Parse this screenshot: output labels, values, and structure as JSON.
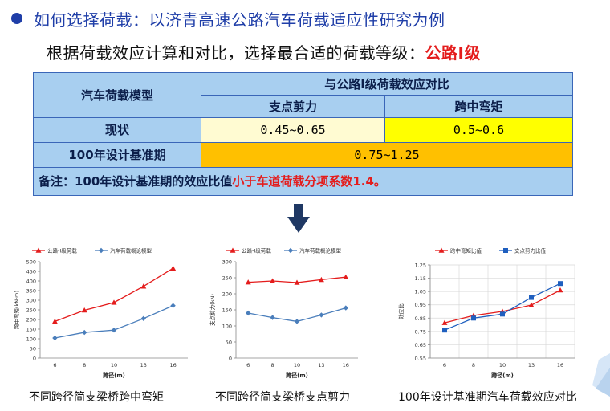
{
  "heading": "如何选择荷载：以济青高速公路汽车荷载适应性研究为例",
  "subheading": {
    "text": "根据荷载效应计算和对比，选择最合适的荷载等级：",
    "highlight": "公路I级"
  },
  "table": {
    "col1_header": "汽车荷载模型",
    "group_header": "与公路I级荷载效应对比",
    "col2_header": "支点剪力",
    "col3_header": "跨中弯矩",
    "row1": {
      "label": "现状",
      "shear": "0.45~0.65",
      "moment": "0.5~0.6"
    },
    "row2": {
      "label": "100年设计基准期",
      "value": "0.75~1.25"
    },
    "note": {
      "text": "备注：100年设计基准期的效应比值",
      "highlight": "小于车道荷载分项系数1.4。"
    }
  },
  "colors": {
    "red": "#e41c1c",
    "blue": "#4a7ebb",
    "navy": "#1f3ea8"
  },
  "chart_data": [
    {
      "type": "line",
      "caption": "不同跨径简支梁桥跨中弯矩",
      "legend": [
        "公路-Ⅰ级荷载",
        "汽车荷载概论模型"
      ],
      "xlabel": "跨径(m)",
      "ylabel": "跨中弯矩(kN·m)",
      "x": [
        6,
        8,
        10,
        13,
        16
      ],
      "ylim": [
        0,
        500
      ],
      "yticks": [
        0,
        50,
        100,
        150,
        200,
        250,
        300,
        350,
        400,
        450,
        500
      ],
      "series": [
        {
          "name": "公路-Ⅰ级荷载",
          "values": [
            190,
            248,
            288,
            372,
            466
          ],
          "color": "#e41c1c",
          "marker": "triangle"
        },
        {
          "name": "汽车荷载概论模型",
          "values": [
            104,
            133,
            145,
            205,
            272
          ],
          "color": "#4a7ebb",
          "marker": "diamond"
        }
      ]
    },
    {
      "type": "line",
      "caption": "不同跨径简支梁桥支点剪力",
      "legend": [
        "公路-Ⅰ级荷载",
        "汽车荷载概论模型"
      ],
      "xlabel": "跨径(m)",
      "ylabel": "支点剪力(kN)",
      "x": [
        6,
        8,
        10,
        13,
        16
      ],
      "ylim": [
        0,
        300
      ],
      "yticks": [
        0,
        50,
        100,
        150,
        200,
        250,
        300
      ],
      "series": [
        {
          "name": "公路-Ⅰ级荷载",
          "values": [
            236,
            240,
            235,
            244,
            252
          ],
          "color": "#e41c1c",
          "marker": "triangle"
        },
        {
          "name": "汽车荷载概论模型",
          "values": [
            140,
            126,
            114,
            134,
            156
          ],
          "color": "#4a7ebb",
          "marker": "diamond"
        }
      ]
    },
    {
      "type": "line",
      "caption": "100年设计基准期汽车荷载效应对比",
      "legend": [
        "跨中弯矩比值",
        "支点剪力比值"
      ],
      "xlabel": "跨径(m)",
      "ylabel": "效应比",
      "x": [
        6,
        8,
        10,
        13,
        16
      ],
      "ylim": [
        0.55,
        1.25
      ],
      "yticks": [
        0.55,
        0.65,
        0.75,
        0.85,
        0.95,
        1.05,
        1.15,
        1.25
      ],
      "grid": true,
      "series": [
        {
          "name": "跨中弯矩比值",
          "values": [
            0.815,
            0.87,
            0.9,
            0.948,
            1.06
          ],
          "color": "#e41c1c",
          "marker": "triangle"
        },
        {
          "name": "支点剪力比值",
          "values": [
            0.76,
            0.85,
            0.88,
            1.005,
            1.11
          ],
          "color": "#1f5fbf",
          "marker": "square"
        }
      ]
    }
  ]
}
